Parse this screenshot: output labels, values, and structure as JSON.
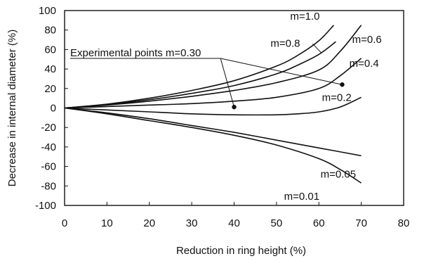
{
  "chart_data": {
    "type": "line",
    "title": "",
    "xlabel": "Reduction in ring height (%)",
    "ylabel": "Decrease in internal diameter (%)",
    "xlim": [
      0,
      80
    ],
    "ylim": [
      -100,
      100
    ],
    "xticks": [
      "0",
      "10",
      "20",
      "30",
      "40",
      "50",
      "60",
      "70",
      "80"
    ],
    "yticks": [
      "100",
      "80",
      "60",
      "40",
      "20",
      "0",
      "-20",
      "-40",
      "-60",
      "-80",
      "-100"
    ],
    "grid": false,
    "series": [
      {
        "name": "m=1.0",
        "x": [
          0,
          10,
          20,
          30,
          40,
          50,
          55,
          60,
          63.5
        ],
        "y": [
          0,
          4,
          10,
          18,
          28,
          43,
          54,
          69,
          85
        ]
      },
      {
        "name": "m=0.8",
        "x": [
          0,
          10,
          20,
          30,
          40,
          50,
          55,
          60,
          64
        ],
        "y": [
          0,
          3.5,
          8.5,
          15,
          23,
          35,
          44,
          55,
          68
        ]
      },
      {
        "name": "m=0.6",
        "x": [
          0,
          10,
          20,
          30,
          40,
          50,
          60,
          65,
          70
        ],
        "y": [
          0,
          3,
          7,
          12,
          18,
          26,
          39,
          58,
          85
        ]
      },
      {
        "name": "m=0.4",
        "x": [
          0,
          10,
          20,
          30,
          40,
          50,
          60,
          65,
          70
        ],
        "y": [
          0,
          1.5,
          3,
          4.5,
          7,
          11,
          20,
          33,
          51
        ]
      },
      {
        "name": "m=0.2",
        "x": [
          0,
          10,
          20,
          30,
          40,
          50,
          55,
          60,
          65,
          70
        ],
        "y": [
          0,
          -2,
          -4,
          -6,
          -7,
          -7,
          -6,
          -4,
          1,
          11
        ]
      },
      {
        "name": "m=0.05",
        "x": [
          0,
          10,
          20,
          30,
          40,
          50,
          60,
          70
        ],
        "y": [
          0,
          -5,
          -11,
          -18,
          -25,
          -33,
          -41,
          -49
        ]
      },
      {
        "name": "m=0.01",
        "x": [
          0,
          10,
          20,
          30,
          40,
          50,
          60,
          65,
          70
        ],
        "y": [
          0,
          -6,
          -13,
          -20,
          -28,
          -38,
          -52,
          -63,
          -77
        ]
      }
    ],
    "curve_label_anchor_x": [
      63,
      64,
      70,
      70,
      70,
      70,
      70
    ],
    "experimental_points": {
      "label": "Experimental points m=0.30",
      "x": [
        40,
        65.5
      ],
      "y": [
        1,
        24
      ]
    }
  }
}
